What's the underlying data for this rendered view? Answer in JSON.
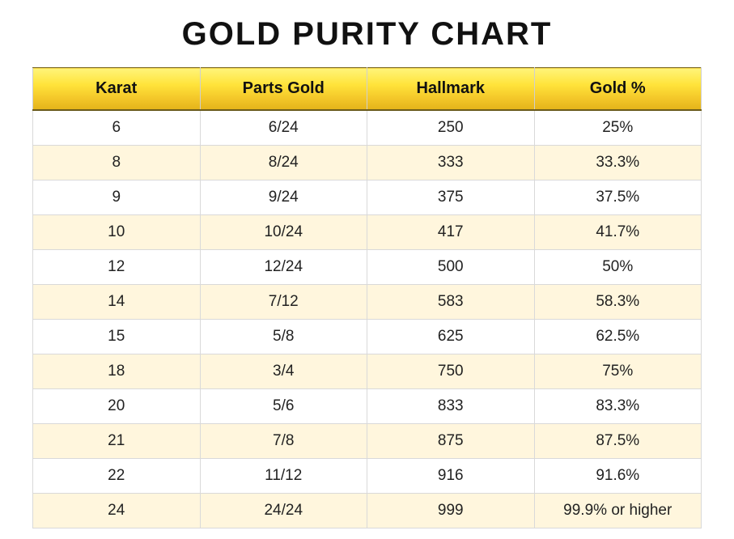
{
  "title": "GOLD PURITY CHART",
  "table": {
    "type": "table",
    "header_bg_gradient": [
      "#fff47a",
      "#ffe33a",
      "#f4c92a",
      "#e4b31a"
    ],
    "header_text_color": "#111111",
    "header_fontsize": 20,
    "header_fontweight": 700,
    "body_fontsize": 19,
    "body_text_color": "#222222",
    "row_bg_odd": "#ffffff",
    "row_bg_even": "#fff6dd",
    "border_color": "#d9d9d9",
    "header_border_bottom": "#6a5a1a",
    "columns": [
      "Karat",
      "Parts Gold",
      "Hallmark",
      "Gold %"
    ],
    "rows": [
      [
        "6",
        "6/24",
        "250",
        "25%"
      ],
      [
        "8",
        "8/24",
        "333",
        "33.3%"
      ],
      [
        "9",
        "9/24",
        "375",
        "37.5%"
      ],
      [
        "10",
        "10/24",
        "417",
        "41.7%"
      ],
      [
        "12",
        "12/24",
        "500",
        "50%"
      ],
      [
        "14",
        "7/12",
        "583",
        "58.3%"
      ],
      [
        "15",
        "5/8",
        "625",
        "62.5%"
      ],
      [
        "18",
        "3/4",
        "750",
        "75%"
      ],
      [
        "20",
        "5/6",
        "833",
        "83.3%"
      ],
      [
        "21",
        "7/8",
        "875",
        "87.5%"
      ],
      [
        "22",
        "11/12",
        "916",
        "91.6%"
      ],
      [
        "24",
        "24/24",
        "999",
        "99.9% or higher"
      ]
    ]
  },
  "title_style": {
    "fontsize": 40,
    "fontweight": 900,
    "letter_spacing": 2,
    "color": "#111111"
  },
  "background_color": "#ffffff"
}
